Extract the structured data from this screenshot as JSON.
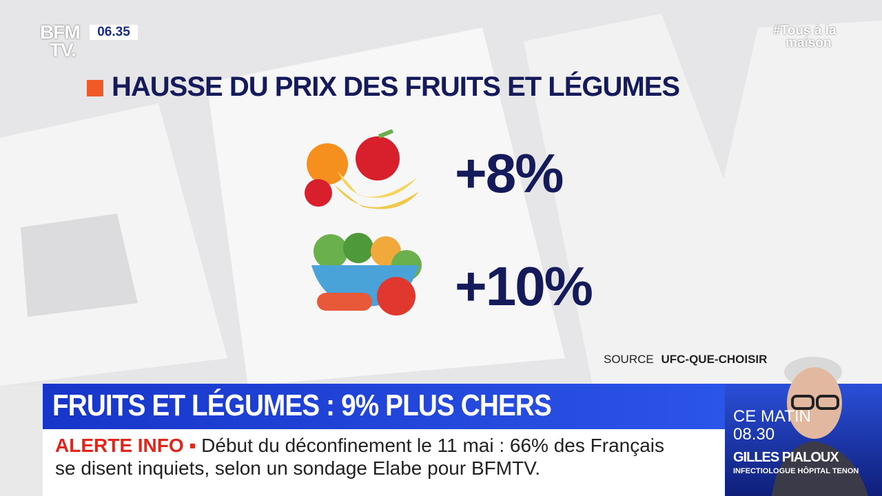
{
  "logo": {
    "line1": "BFM",
    "line2": "TV."
  },
  "clock": "06.35",
  "hashtag": {
    "line1": "#Tous à la",
    "line2": "maison"
  },
  "title": "HAUSSE DU PRIX DES FRUITS ET LÉGUMES",
  "items": [
    {
      "value": "+8%"
    },
    {
      "value": "+10%"
    }
  ],
  "source": {
    "label": "SOURCE",
    "name": "UFC-QUE-CHOISIR"
  },
  "headline": "FRUITS ET LÉGUMES : 9% PLUS CHERS",
  "ticker": {
    "label": "ALERTE INFO",
    "line1": "Début du déconfinement le 11 mai : 66% des Français",
    "line2": "se disent inquiets, selon un sondage Elabe pour BFMTV."
  },
  "guest": {
    "time_label": "CE MATIN",
    "time": "08.30",
    "name": "GILLES PIALOUX",
    "role": "INFECTIOLOGUE HÔPITAL TENON"
  }
}
